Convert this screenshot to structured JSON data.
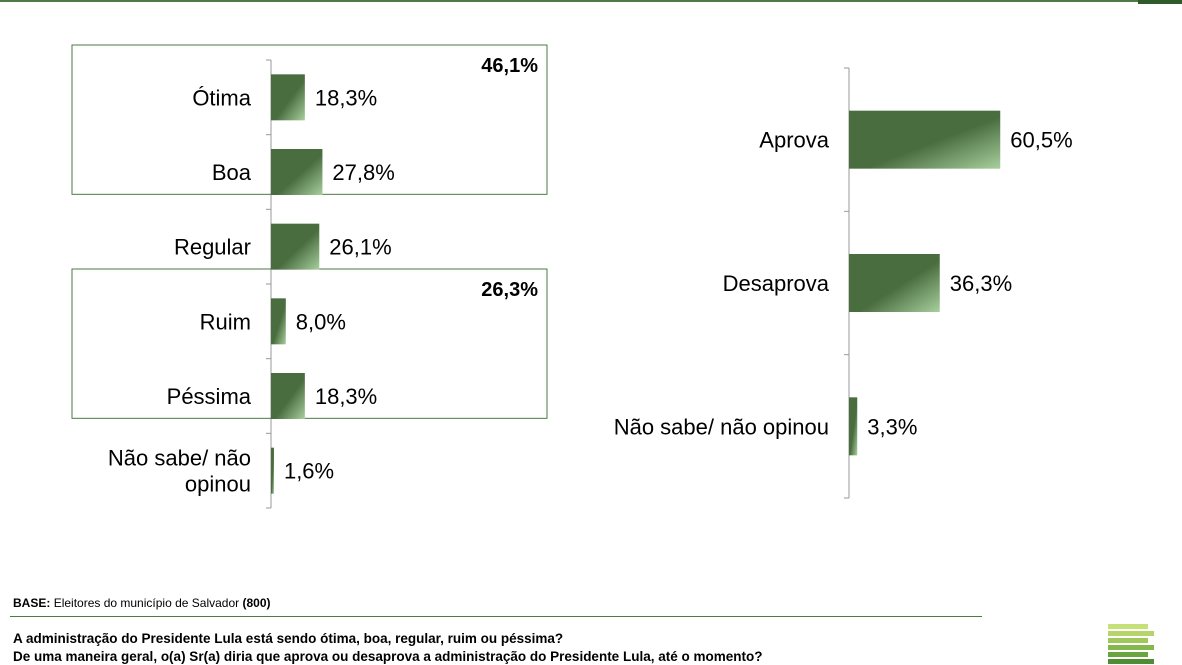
{
  "colors": {
    "bar_dark": "#4a6d40",
    "bar_light": "#a8cf9d",
    "frame": "#4e7a45"
  },
  "chart_data": [
    {
      "type": "bar",
      "orientation": "horizontal",
      "categories": [
        "Ótima",
        "Boa",
        "Regular",
        "Ruim",
        "Péssima",
        "Não sabe/ não opinou"
      ],
      "category_lines": [
        [
          "Ótima"
        ],
        [
          "Boa"
        ],
        [
          "Regular"
        ],
        [
          "Ruim"
        ],
        [
          "Péssima"
        ],
        [
          "Não sabe/ não",
          "opinou"
        ]
      ],
      "values": [
        18.3,
        27.8,
        26.1,
        8.0,
        18.3,
        1.6
      ],
      "value_labels": [
        "18,3%",
        "27,8%",
        "26,1%",
        "8,0%",
        "18,3%",
        "1,6%"
      ],
      "groups": [
        {
          "members": [
            0,
            1
          ],
          "total_label": "46,1%"
        },
        {
          "members": [
            3,
            4
          ],
          "total_label": "26,3%"
        }
      ],
      "xlim": [
        0,
        100
      ],
      "grid": false
    },
    {
      "type": "bar",
      "orientation": "horizontal",
      "categories": [
        "Aprova",
        "Desaprova",
        "Não sabe/ não opinou"
      ],
      "category_lines": [
        [
          "Aprova"
        ],
        [
          "Desaprova"
        ],
        [
          "Não sabe/ não opinou"
        ]
      ],
      "values": [
        60.5,
        36.3,
        3.3
      ],
      "value_labels": [
        "60,5%",
        "36,3%",
        "3,3%"
      ],
      "xlim": [
        0,
        100
      ],
      "grid": false
    }
  ],
  "footer": {
    "base_label": "BASE:",
    "base_text": "Eleitores do município de Salvador",
    "base_count": "(800)",
    "question_1": "A administração do Presidente Lula está sendo ótima, boa, regular, ruim ou péssima?",
    "question_2": "De uma maneira geral, o(a) Sr(a) diria que aprova ou desaprova a administração do Presidente Lula, até o momento?"
  },
  "logo": {
    "stripe_colors": [
      "#c6e07a",
      "#b5d56a",
      "#9fc85a",
      "#85b84c",
      "#6aa43f",
      "#4f8d34"
    ]
  }
}
